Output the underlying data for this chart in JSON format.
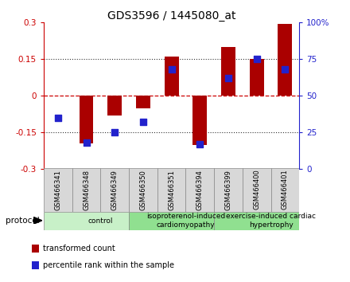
{
  "title": "GDS3596 / 1445080_at",
  "samples": [
    "GSM466341",
    "GSM466348",
    "GSM466349",
    "GSM466350",
    "GSM466351",
    "GSM466394",
    "GSM466399",
    "GSM466400",
    "GSM466401"
  ],
  "red_values": [
    0.0,
    -0.195,
    -0.08,
    -0.05,
    0.16,
    -0.2,
    0.2,
    0.15,
    0.295
  ],
  "blue_values": [
    35,
    18,
    25,
    32,
    68,
    17,
    62,
    75,
    68
  ],
  "group_configs": [
    {
      "start": 0,
      "end": 3,
      "color": "#c8f0c8",
      "label": "control"
    },
    {
      "start": 3,
      "end": 6,
      "color": "#90e090",
      "label": "isoproterenol-induced\ncardiomyopathy"
    },
    {
      "start": 6,
      "end": 9,
      "color": "#90e090",
      "label": "exercise-induced cardiac\nhypertrophy"
    }
  ],
  "ylim_left": [
    -0.3,
    0.3
  ],
  "ylim_right": [
    0,
    100
  ],
  "yticks_left": [
    -0.3,
    -0.15,
    0,
    0.15,
    0.3
  ],
  "ytick_labels_left": [
    "-0.3",
    "-0.15",
    "0",
    "0.15",
    "0.3"
  ],
  "yticks_right": [
    0,
    25,
    50,
    75,
    100
  ],
  "ytick_labels_right": [
    "0",
    "25",
    "50",
    "75",
    "100%"
  ],
  "bar_color": "#aa0000",
  "dot_color": "#2222cc",
  "zero_line_color": "#cc0000",
  "grid_color": "#333333",
  "legend_red": "transformed count",
  "legend_blue": "percentile rank within the sample",
  "protocol_label": "protocol",
  "bar_width": 0.5,
  "dot_size": 35,
  "sample_box_color": "#d8d8d8",
  "title_fontsize": 10,
  "tick_fontsize": 7.5,
  "label_fontsize": 6,
  "group_fontsize": 6.5,
  "legend_fontsize": 7
}
